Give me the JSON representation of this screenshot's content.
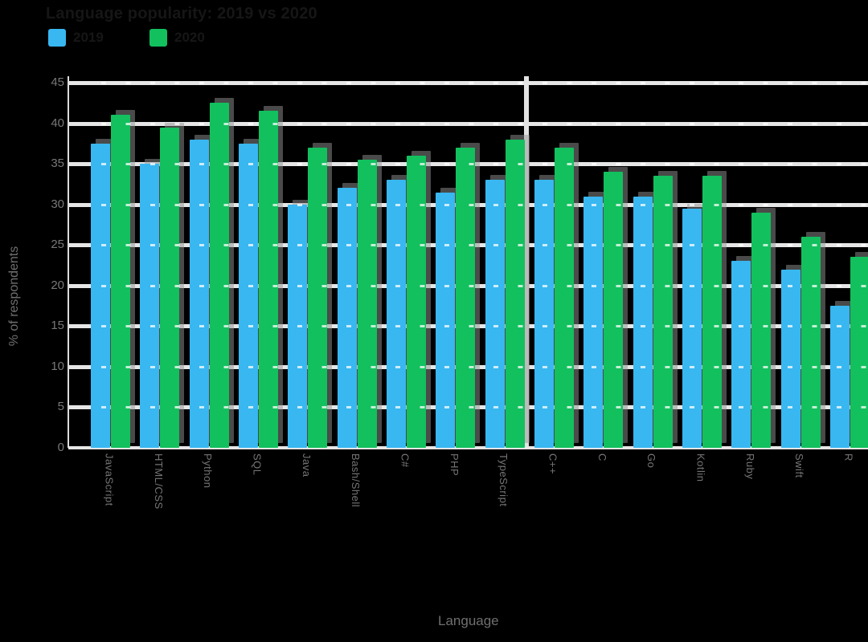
{
  "title": "Language popularity: 2019 vs 2020",
  "legend": {
    "items": [
      {
        "label": "2019",
        "color": "#38b7f1"
      },
      {
        "label": "2020",
        "color": "#12c05e"
      }
    ]
  },
  "axes": {
    "x_title": "Language",
    "y_title": "% of respondents",
    "y_ticks": [
      45,
      40,
      35,
      30,
      25,
      20,
      15,
      10,
      5,
      0
    ]
  },
  "colors": {
    "background": "#000000",
    "series_2019": "#38b7f1",
    "series_2020": "#12c05e",
    "gridline": "#e6e6e6",
    "axis_text": "#757575",
    "title_text": "#161616"
  },
  "chart_data": {
    "type": "bar",
    "title": "Language popularity: 2019 vs 2020",
    "xlabel": "Language",
    "ylabel": "% of respondents",
    "ylim": [
      0,
      45
    ],
    "ytick_step": 5,
    "grid": true,
    "legend_position": "top-left",
    "divider_after_category": 9,
    "categories": [
      "JavaScript",
      "HTML/CSS",
      "Python",
      "SQL",
      "Java",
      "Bash/Shell",
      "C#",
      "PHP",
      "TypeScript",
      "C++",
      "C",
      "Go",
      "Kotlin",
      "Ruby",
      "Swift",
      "R"
    ],
    "series": [
      {
        "name": "2019",
        "color": "#38b7f1",
        "values": [
          37.5,
          35.0,
          38.0,
          37.5,
          30.0,
          32.0,
          33.0,
          31.5,
          33.0,
          33.0,
          31.0,
          31.0,
          29.5,
          23.0,
          22.0,
          17.5
        ]
      },
      {
        "name": "2020",
        "color": "#12c05e",
        "values": [
          41.0,
          39.5,
          42.5,
          41.5,
          37.0,
          35.5,
          36.0,
          37.0,
          38.0,
          37.0,
          34.0,
          33.5,
          33.5,
          29.0,
          26.0,
          23.5
        ]
      }
    ]
  }
}
